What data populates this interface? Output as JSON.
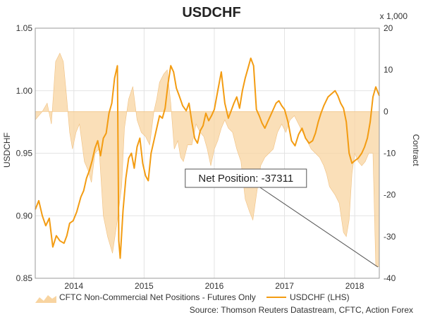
{
  "chart_data": {
    "type": "line",
    "title": "USDCHF",
    "y_left_label": "USDCHF",
    "y_right_label": "Contract",
    "y_right_multiplier": "x 1,000",
    "y_left_range": [
      0.85,
      1.05
    ],
    "y_right_range": [
      -40,
      20
    ],
    "y_left_ticks": [
      "0.85",
      "0.90",
      "0.95",
      "1.00",
      "1.05"
    ],
    "y_right_ticks": [
      "-40",
      "-30",
      "-20",
      "-10",
      "0",
      "10",
      "20"
    ],
    "x_range": [
      2013.45,
      2018.35
    ],
    "x_ticks": [
      {
        "label": "2014",
        "x": 2014.0
      },
      {
        "label": "2015",
        "x": 2015.0
      },
      {
        "label": "2016",
        "x": 2016.0
      },
      {
        "label": "2017",
        "x": 2017.0
      },
      {
        "label": "2018",
        "x": 2018.0
      }
    ],
    "grid": true,
    "legend_position": "bottom",
    "series": [
      {
        "name": "CFTC Non-Commercial Net Positions - Futures Only",
        "kind": "area",
        "axis": "right",
        "color": "#f8d4a0",
        "points": [
          [
            2013.45,
            -2
          ],
          [
            2013.55,
            0
          ],
          [
            2013.62,
            2
          ],
          [
            2013.68,
            -3
          ],
          [
            2013.74,
            12
          ],
          [
            2013.8,
            14
          ],
          [
            2013.85,
            12
          ],
          [
            2013.9,
            3
          ],
          [
            2013.94,
            -5
          ],
          [
            2013.98,
            -9
          ],
          [
            2014.03,
            -5
          ],
          [
            2014.08,
            -3
          ],
          [
            2014.15,
            -12
          ],
          [
            2014.2,
            -14
          ],
          [
            2014.25,
            -17
          ],
          [
            2014.3,
            -10
          ],
          [
            2014.36,
            -9
          ],
          [
            2014.42,
            -25
          ],
          [
            2014.48,
            -30
          ],
          [
            2014.55,
            -34
          ],
          [
            2014.62,
            -26
          ],
          [
            2014.68,
            -18
          ],
          [
            2014.72,
            -4
          ],
          [
            2014.78,
            3
          ],
          [
            2014.84,
            6
          ],
          [
            2014.9,
            -2
          ],
          [
            2014.96,
            -5
          ],
          [
            2015.02,
            -6
          ],
          [
            2015.08,
            -8
          ],
          [
            2015.14,
            0
          ],
          [
            2015.18,
            3
          ],
          [
            2015.22,
            7
          ],
          [
            2015.28,
            9
          ],
          [
            2015.33,
            10
          ],
          [
            2015.38,
            2
          ],
          [
            2015.43,
            -9
          ],
          [
            2015.48,
            -7
          ],
          [
            2015.52,
            -11
          ],
          [
            2015.56,
            -12
          ],
          [
            2015.62,
            -8
          ],
          [
            2015.68,
            -8
          ],
          [
            2015.74,
            -3
          ],
          [
            2015.8,
            -5
          ],
          [
            2015.85,
            -6
          ],
          [
            2015.9,
            -9
          ],
          [
            2015.95,
            -13
          ],
          [
            2016.0,
            -9
          ],
          [
            2016.05,
            -7
          ],
          [
            2016.1,
            -4
          ],
          [
            2016.15,
            -2
          ],
          [
            2016.2,
            -4
          ],
          [
            2016.26,
            -5
          ],
          [
            2016.32,
            -9
          ],
          [
            2016.38,
            -12
          ],
          [
            2016.44,
            -21
          ],
          [
            2016.5,
            -24
          ],
          [
            2016.55,
            -26
          ],
          [
            2016.6,
            -20
          ],
          [
            2016.66,
            -13
          ],
          [
            2016.72,
            -11
          ],
          [
            2016.78,
            -10
          ],
          [
            2016.84,
            -9
          ],
          [
            2016.9,
            -5
          ],
          [
            2016.96,
            -3
          ],
          [
            2017.02,
            -5
          ],
          [
            2017.08,
            -2
          ],
          [
            2017.14,
            -1
          ],
          [
            2017.2,
            -3
          ],
          [
            2017.26,
            -5
          ],
          [
            2017.32,
            -7
          ],
          [
            2017.38,
            -9
          ],
          [
            2017.44,
            -10
          ],
          [
            2017.5,
            -11
          ],
          [
            2017.56,
            -13
          ],
          [
            2017.6,
            -15
          ],
          [
            2017.64,
            -18
          ],
          [
            2017.68,
            -19
          ],
          [
            2017.72,
            -20
          ],
          [
            2017.78,
            -22
          ],
          [
            2017.84,
            -29
          ],
          [
            2017.88,
            -30
          ],
          [
            2017.92,
            -26
          ],
          [
            2017.96,
            -15
          ],
          [
            2018.0,
            -10
          ],
          [
            2018.05,
            -12
          ],
          [
            2018.1,
            -13
          ],
          [
            2018.15,
            -12
          ],
          [
            2018.2,
            -10
          ],
          [
            2018.26,
            -10
          ],
          [
            2018.3,
            -37
          ],
          [
            2018.35,
            -37.3
          ]
        ]
      },
      {
        "name": "USDCHF (LHS)",
        "kind": "line",
        "axis": "left",
        "color": "#f39c12",
        "points": [
          [
            2013.45,
            0.905
          ],
          [
            2013.5,
            0.912
          ],
          [
            2013.55,
            0.9
          ],
          [
            2013.6,
            0.892
          ],
          [
            2013.65,
            0.898
          ],
          [
            2013.7,
            0.875
          ],
          [
            2013.75,
            0.884
          ],
          [
            2013.8,
            0.88
          ],
          [
            2013.86,
            0.878
          ],
          [
            2013.9,
            0.884
          ],
          [
            2013.94,
            0.894
          ],
          [
            2013.99,
            0.896
          ],
          [
            2014.04,
            0.903
          ],
          [
            2014.1,
            0.915
          ],
          [
            2014.14,
            0.92
          ],
          [
            2014.18,
            0.93
          ],
          [
            2014.22,
            0.936
          ],
          [
            2014.26,
            0.944
          ],
          [
            2014.3,
            0.954
          ],
          [
            2014.34,
            0.96
          ],
          [
            2014.38,
            0.948
          ],
          [
            2014.42,
            0.962
          ],
          [
            2014.46,
            0.966
          ],
          [
            2014.5,
            0.982
          ],
          [
            2014.54,
            0.99
          ],
          [
            2014.58,
            1.01
          ],
          [
            2014.62,
            1.02
          ],
          [
            2014.64,
            0.88
          ],
          [
            2014.66,
            0.866
          ],
          [
            2014.7,
            0.904
          ],
          [
            2014.74,
            0.93
          ],
          [
            2014.78,
            0.946
          ],
          [
            2014.82,
            0.95
          ],
          [
            2014.86,
            0.938
          ],
          [
            2014.9,
            0.955
          ],
          [
            2014.94,
            0.962
          ],
          [
            2014.98,
            0.942
          ],
          [
            2015.02,
            0.932
          ],
          [
            2015.06,
            0.928
          ],
          [
            2015.1,
            0.95
          ],
          [
            2015.14,
            0.96
          ],
          [
            2015.18,
            0.97
          ],
          [
            2015.22,
            0.98
          ],
          [
            2015.26,
            0.978
          ],
          [
            2015.3,
            0.986
          ],
          [
            2015.34,
            1.005
          ],
          [
            2015.38,
            1.02
          ],
          [
            2015.42,
            1.015
          ],
          [
            2015.46,
            1.002
          ],
          [
            2015.5,
            0.996
          ],
          [
            2015.55,
            0.988
          ],
          [
            2015.6,
            0.984
          ],
          [
            2015.64,
            0.99
          ],
          [
            2015.68,
            0.975
          ],
          [
            2015.72,
            0.962
          ],
          [
            2015.76,
            0.958
          ],
          [
            2015.8,
            0.968
          ],
          [
            2015.84,
            0.972
          ],
          [
            2015.88,
            0.982
          ],
          [
            2015.92,
            0.976
          ],
          [
            2015.96,
            0.98
          ],
          [
            2016.0,
            0.985
          ],
          [
            2016.05,
            1.0
          ],
          [
            2016.1,
            1.015
          ],
          [
            2016.15,
            0.99
          ],
          [
            2016.2,
            0.978
          ],
          [
            2016.24,
            0.984
          ],
          [
            2016.28,
            0.99
          ],
          [
            2016.32,
            0.995
          ],
          [
            2016.36,
            0.986
          ],
          [
            2016.4,
            1.0
          ],
          [
            2016.44,
            1.01
          ],
          [
            2016.48,
            1.018
          ],
          [
            2016.52,
            1.026
          ],
          [
            2016.56,
            1.02
          ],
          [
            2016.6,
            0.985
          ],
          [
            2016.64,
            0.98
          ],
          [
            2016.68,
            0.974
          ],
          [
            2016.72,
            0.97
          ],
          [
            2016.76,
            0.975
          ],
          [
            2016.8,
            0.98
          ],
          [
            2016.84,
            0.985
          ],
          [
            2016.88,
            0.99
          ],
          [
            2016.92,
            0.992
          ],
          [
            2016.96,
            0.988
          ],
          [
            2017.0,
            0.985
          ],
          [
            2017.05,
            0.975
          ],
          [
            2017.1,
            0.96
          ],
          [
            2017.15,
            0.956
          ],
          [
            2017.2,
            0.965
          ],
          [
            2017.25,
            0.97
          ],
          [
            2017.3,
            0.962
          ],
          [
            2017.35,
            0.958
          ],
          [
            2017.4,
            0.96
          ],
          [
            2017.44,
            0.966
          ],
          [
            2017.48,
            0.975
          ],
          [
            2017.52,
            0.982
          ],
          [
            2017.56,
            0.988
          ],
          [
            2017.62,
            0.995
          ],
          [
            2017.68,
            0.998
          ],
          [
            2017.72,
            1.0
          ],
          [
            2017.76,
            0.996
          ],
          [
            2017.8,
            0.99
          ],
          [
            2017.84,
            0.986
          ],
          [
            2017.88,
            0.975
          ],
          [
            2017.92,
            0.95
          ],
          [
            2017.96,
            0.942
          ],
          [
            2018.0,
            0.944
          ],
          [
            2018.05,
            0.946
          ],
          [
            2018.1,
            0.95
          ],
          [
            2018.14,
            0.955
          ],
          [
            2018.18,
            0.962
          ],
          [
            2018.22,
            0.975
          ],
          [
            2018.26,
            0.995
          ],
          [
            2018.3,
            1.003
          ],
          [
            2018.35,
            0.996
          ]
        ]
      }
    ],
    "annotations": [
      {
        "text": "Net Position: -37311",
        "x": 2016.45,
        "y_right": -16,
        "target_x": 2018.35,
        "target_y_right": -37.3
      }
    ]
  },
  "source": "Source: Thomson Reuters Datastream, CFTC, Action Forex"
}
